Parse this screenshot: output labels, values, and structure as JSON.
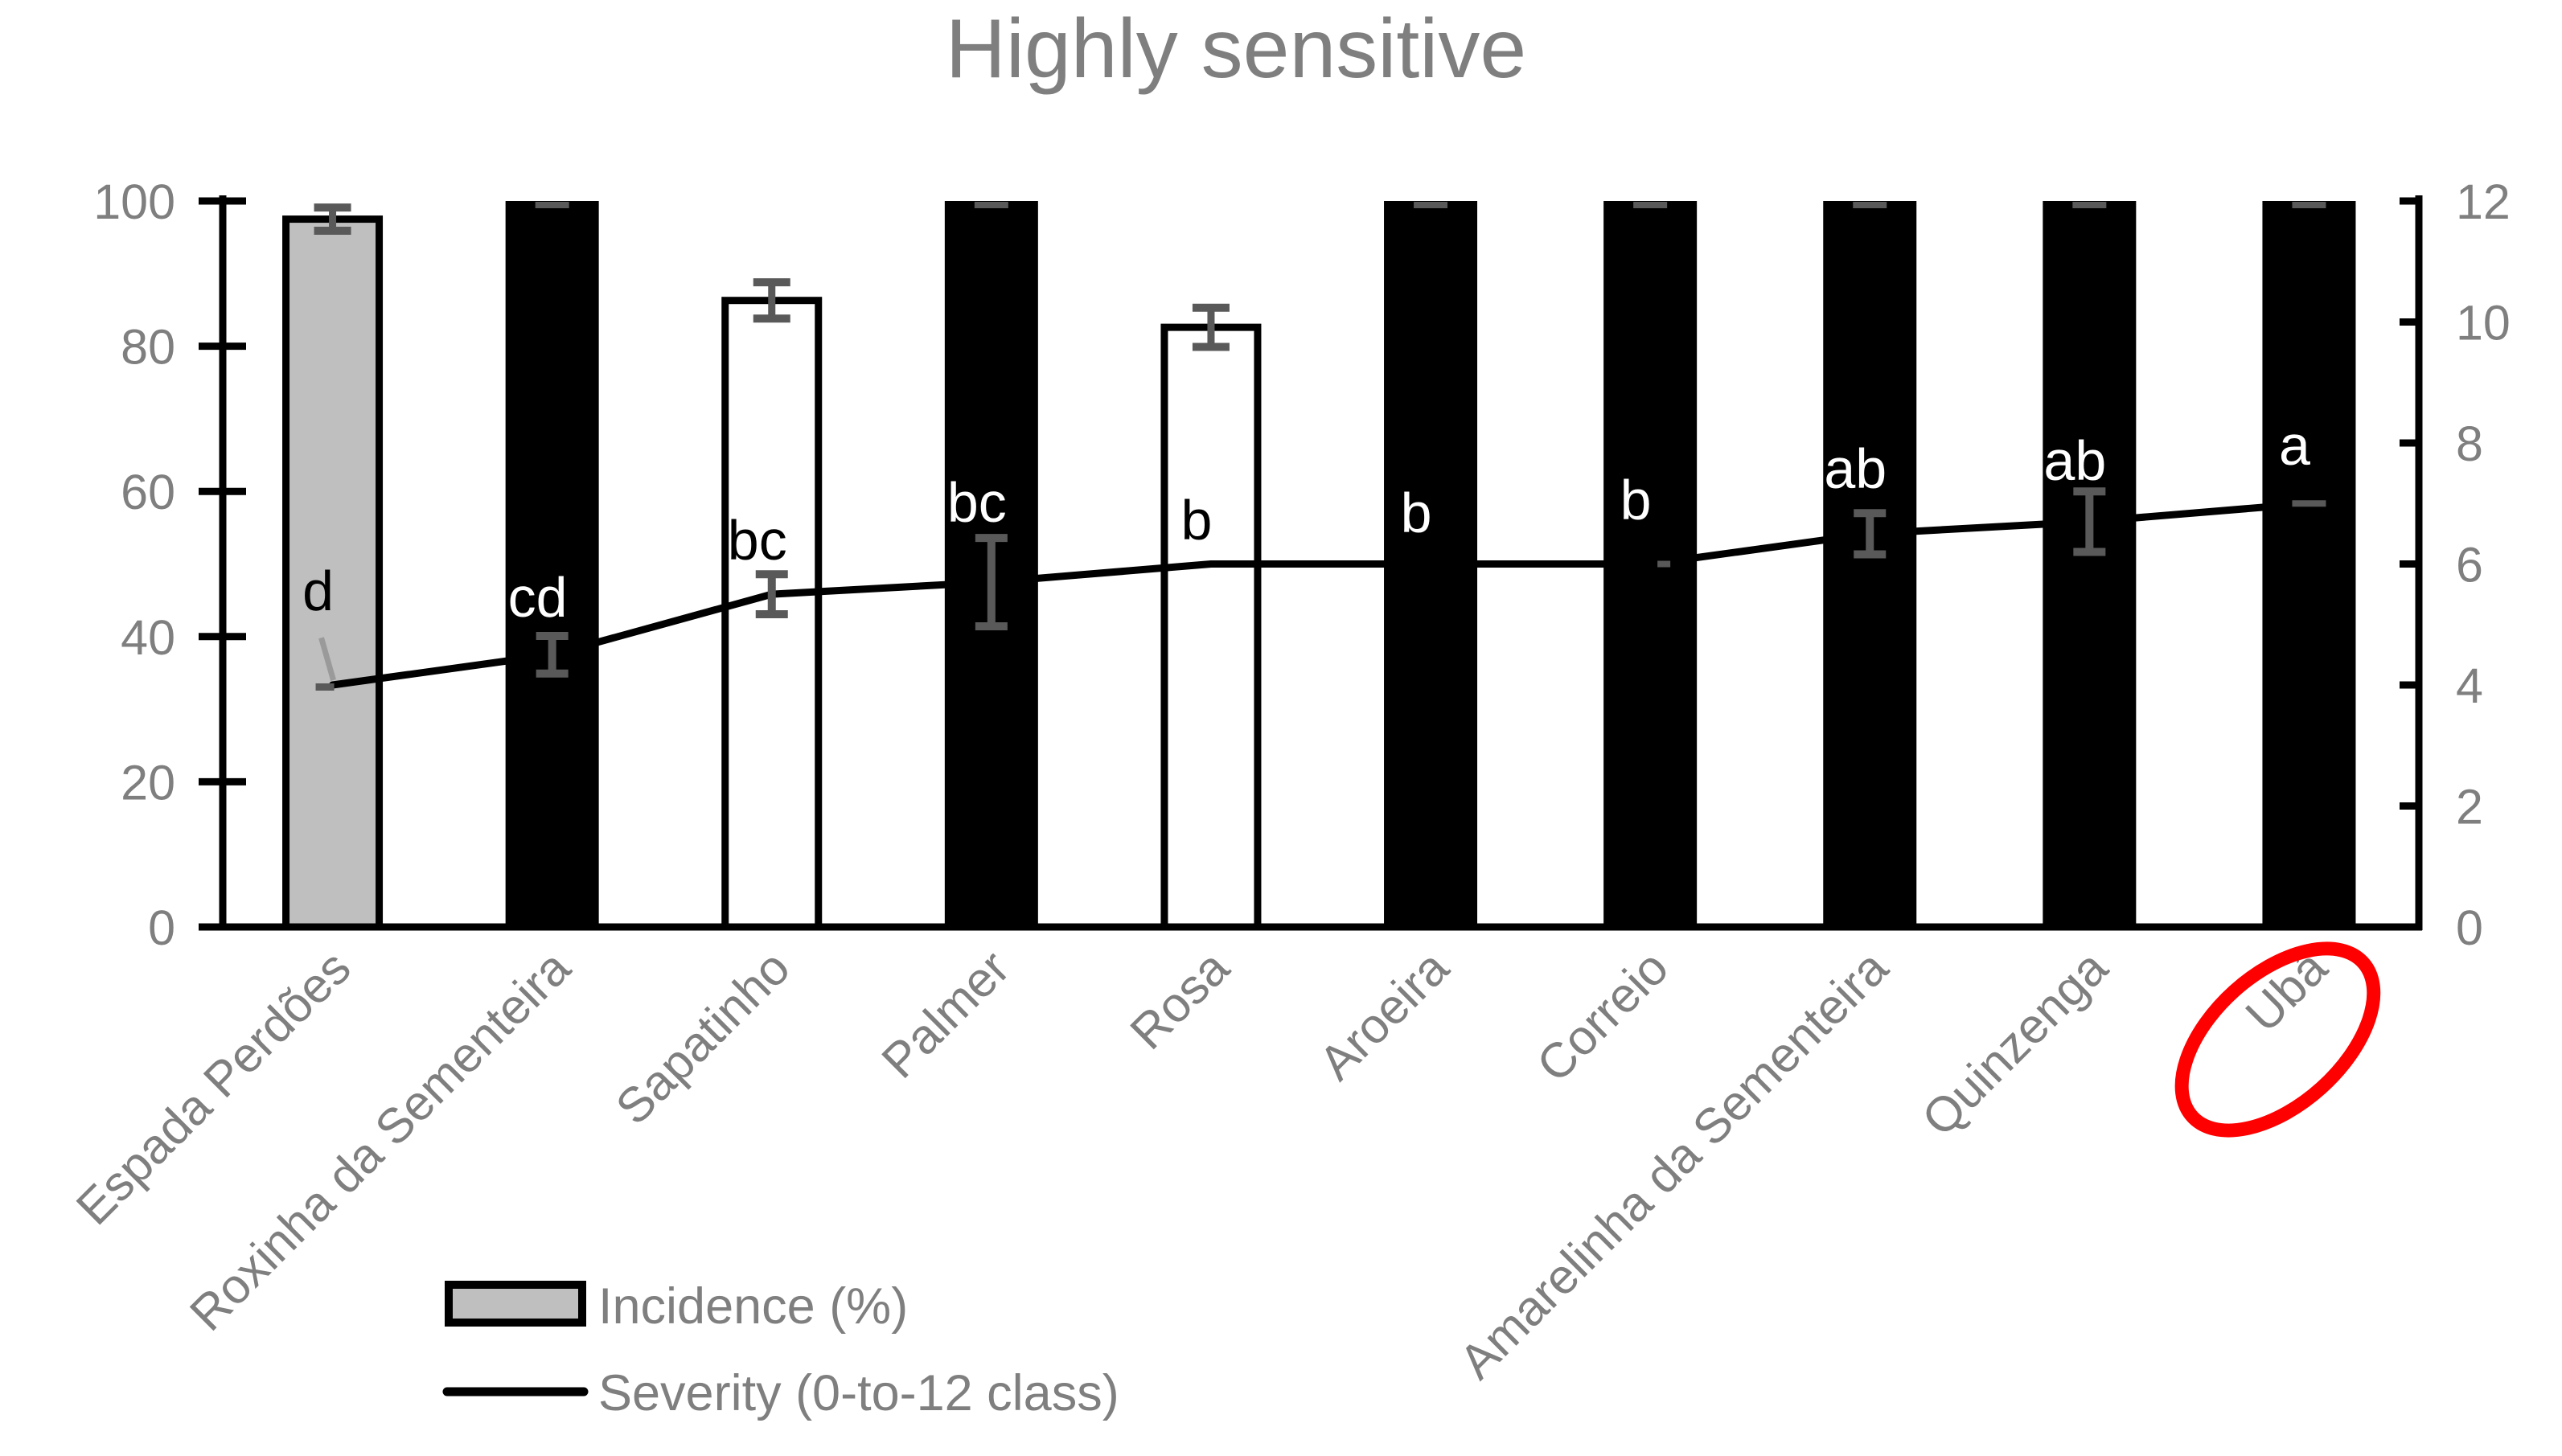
{
  "title": "Highly sensitive",
  "colors": {
    "title_text": "#7f7f7f",
    "axis_text": "#7f7f7f",
    "axis_line": "#000000",
    "bar_black": "#000000",
    "bar_gray": "#bfbfbf",
    "bar_white": "#ffffff",
    "bar_border": "#000000",
    "error_bar": "#595959",
    "error_bar_light": "#9a9a9a",
    "severity_line": "#000000",
    "highlight_circle": "#ff0000",
    "letter_on_black": "#ffffff",
    "letter_on_light": "#000000"
  },
  "legend": {
    "items": [
      {
        "label": "Incidence (%)",
        "swatch": "gray-bar"
      },
      {
        "label": "Severity (0-to-12 class)",
        "swatch": "black-line"
      }
    ]
  },
  "chart_data": {
    "type": "bar+line",
    "title": "Highly sensitive",
    "categories": [
      "Espada Perdões",
      "Roxinha da Sementeira",
      "Sapatinho",
      "Palmer",
      "Rosa",
      "Aroeira",
      "Correio",
      "Amarelinha da Sementeira",
      "Quinzenga",
      "Ubá"
    ],
    "series": [
      {
        "name": "Incidence (%)",
        "type": "bar",
        "axis": "left",
        "values": [
          97.5,
          100,
          86.3,
          100,
          82.6,
          100,
          100,
          100,
          100,
          100
        ],
        "bar_fill": [
          "gray",
          "black",
          "white",
          "black",
          "white",
          "black",
          "black",
          "black",
          "black",
          "black"
        ],
        "error_bars": [
          1.6,
          null,
          2.5,
          null,
          2.7,
          null,
          null,
          null,
          null,
          null
        ],
        "clipped_error_cap_at_top": [
          false,
          true,
          false,
          true,
          false,
          true,
          true,
          true,
          true,
          true
        ],
        "significance_letters": [
          "d",
          "cd",
          "bc",
          "bc",
          "b",
          "b",
          "b",
          "ab",
          "ab",
          "a"
        ],
        "letter_colors": [
          "black",
          "white",
          "black",
          "white",
          "black",
          "white",
          "white",
          "white",
          "white",
          "white"
        ]
      },
      {
        "name": "Severity (0-to-12 class)",
        "type": "line",
        "axis": "right",
        "values": [
          4.0,
          4.5,
          5.5,
          5.7,
          6.0,
          6.0,
          6.0,
          6.5,
          6.7,
          7.0
        ],
        "error_bars": [
          0.35,
          0.31,
          0.33,
          0.73,
          null,
          null,
          0.05,
          0.34,
          0.5,
          0.08
        ]
      }
    ],
    "left_axis": {
      "range": [
        0,
        100
      ],
      "ticks": [
        0,
        20,
        40,
        60,
        80,
        100
      ]
    },
    "right_axis": {
      "range": [
        0,
        12
      ],
      "ticks": [
        0,
        2,
        4,
        6,
        8,
        10,
        12
      ]
    },
    "grid": false,
    "legend_position": "bottom",
    "annotation": {
      "type": "ellipse",
      "target_category": "Ubá",
      "color": "#ff0000"
    }
  }
}
